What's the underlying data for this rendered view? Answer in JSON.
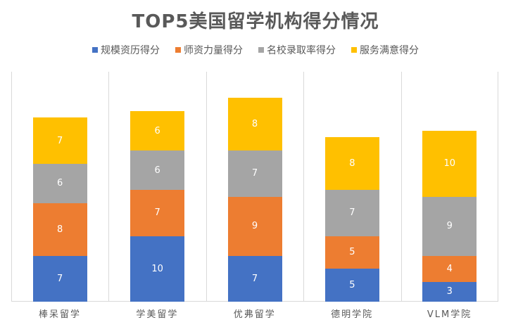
{
  "chart_data": {
    "type": "bar",
    "stacked": true,
    "title": "TOP5美国留学机构得分情况",
    "xlabel": "",
    "ylabel": "",
    "grid": "vertical category separators",
    "legend_position": "top",
    "categories": [
      "棒呆留学",
      "学美留学",
      "优弗留学",
      "德明学院",
      "VLM学院"
    ],
    "series": [
      {
        "name": "规模资历得分",
        "color": "#4472c4",
        "values": [
          7,
          10,
          7,
          5,
          3
        ]
      },
      {
        "name": "师资力量得分",
        "color": "#ed7d31",
        "values": [
          8,
          7,
          9,
          5,
          4
        ]
      },
      {
        "name": "名校录取率得分",
        "color": "#a5a5a5",
        "values": [
          6,
          6,
          7,
          7,
          9
        ]
      },
      {
        "name": "服务满意得分",
        "color": "#ffc000",
        "values": [
          7,
          6,
          8,
          8,
          10
        ]
      }
    ],
    "totals": [
      28,
      29,
      31,
      25,
      26
    ],
    "ylim": [
      0,
      35
    ]
  }
}
